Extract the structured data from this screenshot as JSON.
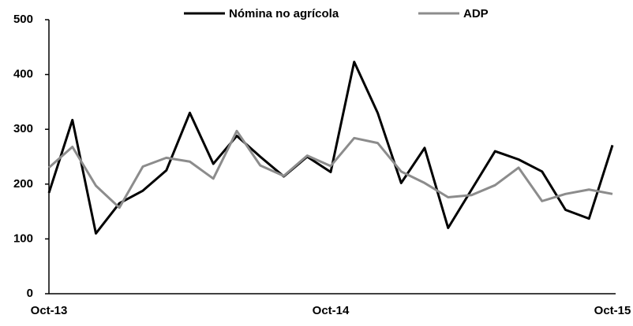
{
  "chart_data": {
    "type": "line",
    "categories": [
      "Oct-13",
      null,
      null,
      null,
      null,
      null,
      null,
      null,
      null,
      null,
      null,
      null,
      "Oct-14",
      null,
      null,
      null,
      null,
      null,
      null,
      null,
      null,
      null,
      null,
      null,
      "Oct-15"
    ],
    "series": [
      {
        "name": "Nómina no agrícola",
        "color": "#000000",
        "values": [
          184,
          317,
          110,
          165,
          188,
          225,
          330,
          237,
          288,
          250,
          214,
          250,
          222,
          423,
          330,
          202,
          266,
          120,
          190,
          260,
          245,
          223,
          153,
          137,
          271
        ]
      },
      {
        "name": "ADP",
        "color": "#8c8c8c",
        "values": [
          230,
          268,
          197,
          157,
          232,
          248,
          241,
          210,
          297,
          234,
          215,
          252,
          233,
          284,
          275,
          223,
          202,
          176,
          180,
          198,
          230,
          169,
          182,
          190,
          182
        ]
      }
    ],
    "ylim": [
      0,
      500
    ],
    "yticks": [
      0,
      100,
      200,
      300,
      400,
      500
    ],
    "grid": false,
    "legend": "top"
  }
}
